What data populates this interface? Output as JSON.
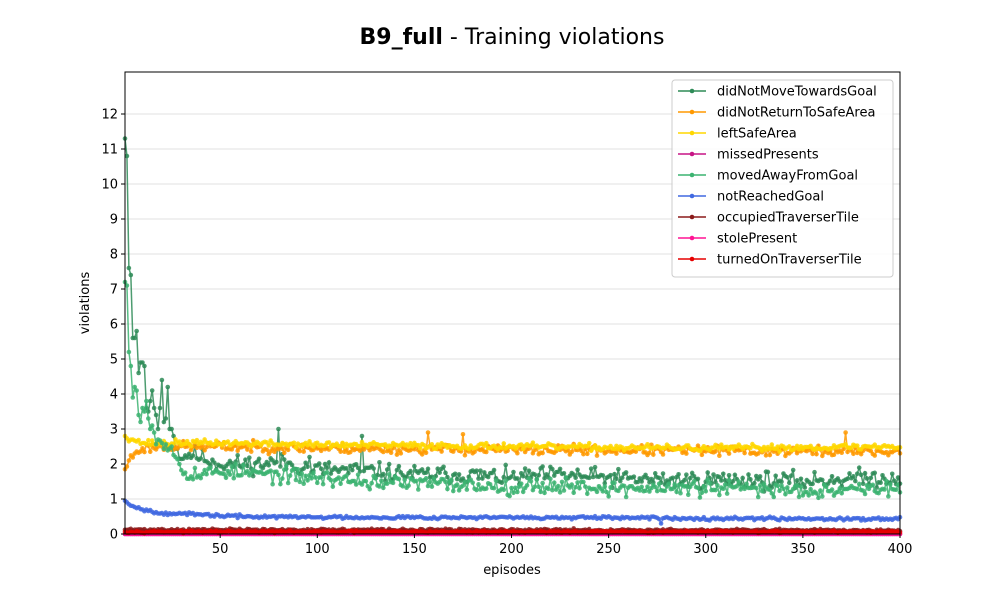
{
  "chart_data": {
    "type": "line",
    "title_bold": "B9_full",
    "title_rest": " - Training violations",
    "xlabel": "episodes",
    "ylabel": "violations",
    "xlim": [
      1,
      400
    ],
    "ylim": [
      0,
      13.2
    ],
    "x_ticks": [
      50,
      100,
      150,
      200,
      250,
      300,
      350,
      400
    ],
    "y_ticks": [
      0,
      1,
      2,
      3,
      4,
      5,
      6,
      7,
      8,
      9,
      10,
      11,
      12
    ],
    "grid": "horizontal",
    "legend_position": "top-right",
    "series": [
      {
        "name": "didNotMoveTowardsGoal",
        "color": "#2e8b57",
        "samples": [
          [
            1,
            11.3
          ],
          [
            2,
            10.8
          ],
          [
            3,
            7.6
          ],
          [
            4,
            7.4
          ],
          [
            5,
            5.6
          ],
          [
            6,
            5.6
          ],
          [
            7,
            5.8
          ],
          [
            8,
            4.6
          ],
          [
            9,
            4.9
          ],
          [
            10,
            4.9
          ],
          [
            11,
            4.8
          ],
          [
            12,
            3.6
          ],
          [
            13,
            3.5
          ],
          [
            14,
            3.8
          ],
          [
            15,
            4.1
          ],
          [
            16,
            3.6
          ],
          [
            17,
            3.4
          ],
          [
            18,
            3.0
          ],
          [
            19,
            3.6
          ],
          [
            20,
            4.4
          ],
          [
            21,
            3.2
          ],
          [
            22,
            3.3
          ],
          [
            23,
            4.2
          ],
          [
            24,
            3.0
          ],
          [
            25,
            3.0
          ],
          [
            26,
            2.8
          ],
          [
            28,
            2.4
          ],
          [
            30,
            2.2
          ],
          [
            35,
            2.3
          ],
          [
            40,
            2.2
          ],
          [
            50,
            2.0
          ],
          [
            60,
            2.0
          ],
          [
            70,
            2.0
          ],
          [
            80,
            2.05
          ],
          [
            100,
            1.85
          ],
          [
            125,
            1.8
          ],
          [
            150,
            1.7
          ],
          [
            175,
            1.7
          ],
          [
            200,
            1.6
          ],
          [
            225,
            1.7
          ],
          [
            250,
            1.6
          ],
          [
            275,
            1.55
          ],
          [
            300,
            1.55
          ],
          [
            325,
            1.55
          ],
          [
            350,
            1.5
          ],
          [
            375,
            1.6
          ],
          [
            400,
            1.6
          ]
        ],
        "noise": 0.28,
        "spikes": [
          [
            80,
            3.0
          ],
          [
            123,
            2.8
          ],
          [
            96,
            2.2
          ]
        ],
        "seed": 11
      },
      {
        "name": "didNotReturnToSafeArea",
        "color": "#ff9900",
        "samples": [
          [
            1,
            1.85
          ],
          [
            3,
            2.1
          ],
          [
            6,
            2.3
          ],
          [
            10,
            2.45
          ],
          [
            20,
            2.5
          ],
          [
            40,
            2.5
          ],
          [
            100,
            2.45
          ],
          [
            200,
            2.4
          ],
          [
            300,
            2.38
          ],
          [
            400,
            2.35
          ]
        ],
        "noise": 0.16,
        "spikes": [
          [
            157,
            2.9
          ],
          [
            372,
            2.9
          ],
          [
            175,
            2.85
          ]
        ],
        "seed": 23
      },
      {
        "name": "leftSafeArea",
        "color": "#ffd700",
        "samples": [
          [
            1,
            2.8
          ],
          [
            5,
            2.7
          ],
          [
            10,
            2.6
          ],
          [
            50,
            2.6
          ],
          [
            100,
            2.55
          ],
          [
            200,
            2.5
          ],
          [
            300,
            2.45
          ],
          [
            400,
            2.5
          ]
        ],
        "noise": 0.1,
        "spikes": [],
        "seed": 37
      },
      {
        "name": "missedPresents",
        "color": "#c71585",
        "samples": [
          [
            1,
            0.0
          ],
          [
            400,
            0.0
          ]
        ],
        "noise": 0.0,
        "spikes": [],
        "seed": 41
      },
      {
        "name": "movedAwayFromGoal",
        "color": "#3cb371",
        "samples": [
          [
            1,
            7.2
          ],
          [
            2,
            7.1
          ],
          [
            3,
            5.2
          ],
          [
            4,
            4.8
          ],
          [
            5,
            3.9
          ],
          [
            6,
            4.2
          ],
          [
            7,
            4.1
          ],
          [
            8,
            3.4
          ],
          [
            9,
            3.2
          ],
          [
            10,
            3.6
          ],
          [
            11,
            3.5
          ],
          [
            12,
            3.8
          ],
          [
            13,
            3.3
          ],
          [
            14,
            3.0
          ],
          [
            15,
            3.1
          ],
          [
            16,
            2.9
          ],
          [
            18,
            2.7
          ],
          [
            20,
            2.6
          ],
          [
            25,
            2.5
          ],
          [
            28,
            2.1
          ],
          [
            31,
            1.8
          ],
          [
            40,
            1.7
          ],
          [
            50,
            1.8
          ],
          [
            75,
            1.7
          ],
          [
            100,
            1.6
          ],
          [
            125,
            1.5
          ],
          [
            150,
            1.45
          ],
          [
            175,
            1.4
          ],
          [
            200,
            1.35
          ],
          [
            225,
            1.4
          ],
          [
            250,
            1.3
          ],
          [
            275,
            1.3
          ],
          [
            300,
            1.3
          ],
          [
            325,
            1.3
          ],
          [
            350,
            1.25
          ],
          [
            375,
            1.3
          ],
          [
            400,
            1.3
          ]
        ],
        "noise": 0.25,
        "spikes": [],
        "seed": 53
      },
      {
        "name": "notReachedGoal",
        "color": "#4169e1",
        "samples": [
          [
            1,
            0.95
          ],
          [
            5,
            0.8
          ],
          [
            10,
            0.7
          ],
          [
            20,
            0.6
          ],
          [
            40,
            0.55
          ],
          [
            60,
            0.5
          ],
          [
            100,
            0.48
          ],
          [
            200,
            0.47
          ],
          [
            300,
            0.45
          ],
          [
            400,
            0.43
          ]
        ],
        "noise": 0.05,
        "spikes": [
          [
            277,
            0.3
          ]
        ],
        "seed": 67
      },
      {
        "name": "occupiedTraverserTile",
        "color": "#8b1a1a",
        "samples": [
          [
            1,
            0.12
          ],
          [
            400,
            0.1
          ]
        ],
        "noise": 0.04,
        "spikes": [],
        "seed": 71
      },
      {
        "name": "stolePresent",
        "color": "#ff1493",
        "samples": [
          [
            1,
            0.0
          ],
          [
            400,
            0.0
          ]
        ],
        "noise": 0.0,
        "spikes": [],
        "seed": 83
      },
      {
        "name": "turnedOnTraverserTile",
        "color": "#e60000",
        "samples": [
          [
            1,
            0.06
          ],
          [
            400,
            0.06
          ]
        ],
        "noise": 0.03,
        "spikes": [],
        "seed": 97
      }
    ]
  }
}
